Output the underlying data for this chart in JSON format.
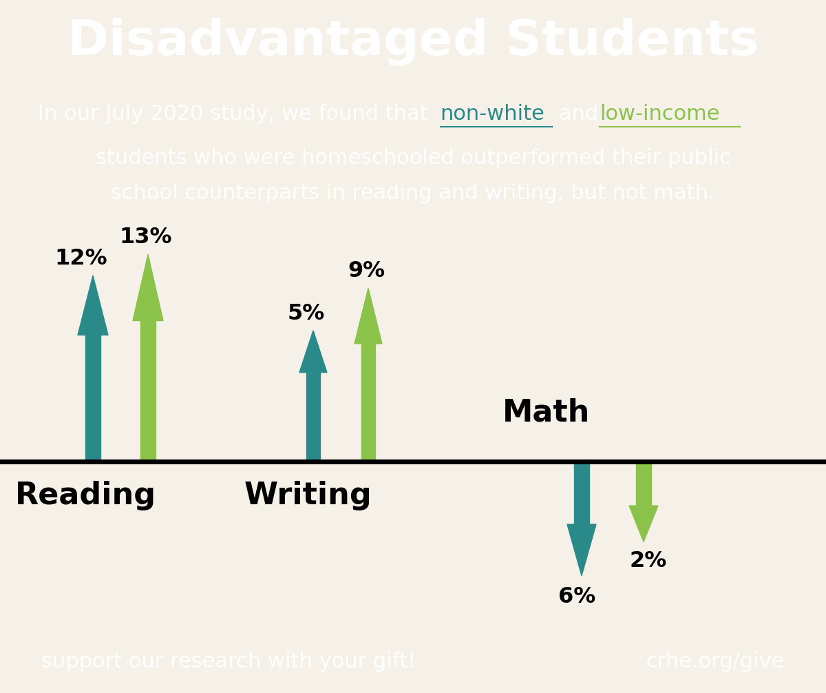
{
  "title": "Disadvantaged Students",
  "subtitle_line1_plain": "In our July 2020 study, we found that ",
  "subtitle_highlight1": "non-white",
  "subtitle_mid": " and  ",
  "subtitle_highlight2": "low-income",
  "subtitle_line2": "students who were homeschooled outperformed their public",
  "subtitle_line3": "school counterparts in reading and writing, but not math.",
  "header_bg": "#162547",
  "body_bg": "#f5f0e8",
  "footer_bg": "#162547",
  "footer_left": "support our research with your gift!",
  "footer_right": "crhe.org/give",
  "teal_color": "#2a8a8a",
  "green_color": "#8bc34a",
  "reading_label": "Reading",
  "writing_label": "Writing",
  "math_label": "Math",
  "reading_teal_pct": "12%",
  "reading_green_pct": "13%",
  "writing_teal_pct": "5%",
  "writing_green_pct": "9%",
  "math_teal_pct": "6%",
  "math_green_pct": "2%",
  "nonwhite_color": "#2a8a8a",
  "lowincome_color": "#8bc34a"
}
